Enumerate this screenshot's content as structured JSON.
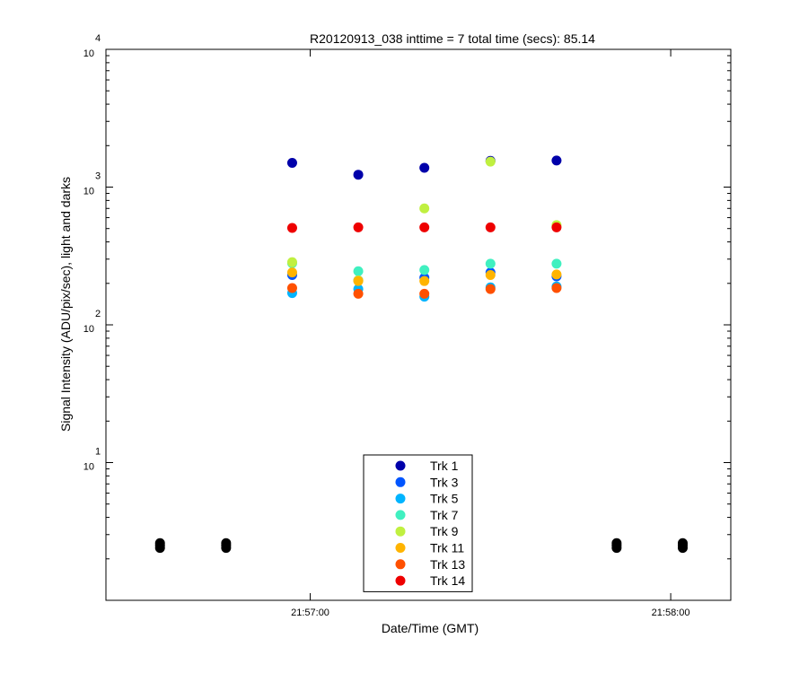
{
  "chart_data": {
    "type": "scatter",
    "title": "R20120913_038 inttime = 7 total time (secs): 85.14",
    "xlabel": "Date/Time (GMT)",
    "ylabel": "Signal Intensity (ADU/pix/sec), light and darks",
    "yscale": "log",
    "ylim": [
      1,
      10000
    ],
    "xlim": [
      "21:56:26",
      "21:58:10"
    ],
    "x_ticks": [
      "21:57:00",
      "21:58:00"
    ],
    "y_ticks": [
      {
        "base": "10",
        "exp": "1"
      },
      {
        "base": "10",
        "exp": "2"
      },
      {
        "base": "10",
        "exp": "3"
      },
      {
        "base": "10",
        "exp": "4"
      }
    ],
    "grid": false,
    "legend_position": "bottom-center",
    "darks": {
      "color": "#000000",
      "x": [
        "21:56:35",
        "21:56:46",
        "21:57:51",
        "21:58:02"
      ],
      "y": [
        [
          2.4,
          2.5,
          2.6
        ],
        [
          2.4,
          2.5,
          2.6
        ],
        [
          2.4,
          2.5,
          2.6
        ],
        [
          2.4,
          2.5,
          2.6
        ]
      ]
    },
    "x": [
      "21:56:57",
      "21:57:08",
      "21:57:19",
      "21:57:30",
      "21:57:41"
    ],
    "series": [
      {
        "name": "Trk 1",
        "color": "#0000aa",
        "values": [
          1500,
          1230,
          1380,
          1550,
          1560
        ]
      },
      {
        "name": "Trk 3",
        "color": "#0055ff",
        "values": [
          230,
          210,
          220,
          240,
          225
        ]
      },
      {
        "name": "Trk 5",
        "color": "#00b4ff",
        "values": [
          170,
          182,
          160,
          187,
          190
        ]
      },
      {
        "name": "Trk 7",
        "color": "#40f0c0",
        "values": [
          280,
          245,
          250,
          278,
          278
        ]
      },
      {
        "name": "Trk 9",
        "color": "#c0f040",
        "values": [
          285,
          210,
          700,
          1530,
          530
        ]
      },
      {
        "name": "Trk 11",
        "color": "#ffb400",
        "values": [
          240,
          208,
          208,
          230,
          232
        ]
      },
      {
        "name": "Trk 13",
        "color": "#ff5000",
        "values": [
          185,
          168,
          168,
          182,
          185
        ]
      },
      {
        "name": "Trk 14",
        "color": "#ee0000",
        "values": [
          505,
          510,
          510,
          510,
          510
        ]
      }
    ]
  }
}
